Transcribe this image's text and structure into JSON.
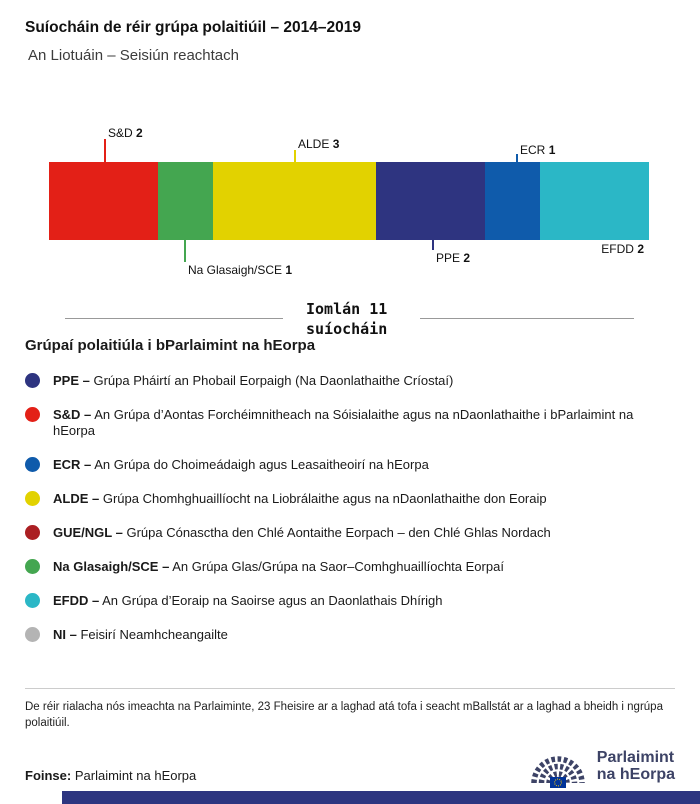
{
  "colors": {
    "text_dark": "#1a1a1a",
    "rule_gray": "#999999",
    "divider_gray": "#cccccc",
    "strip_navy": "#2d3580",
    "logo_navy": "#3d4366",
    "flag_blue": "#003399",
    "star_yellow": "#ffcc00"
  },
  "chart_data": {
    "type": "bar",
    "variant": "single-stacked-horizontal",
    "title": "Suíocháin de réir grúpa polaitiúil – 2014–2019",
    "subtitle": "An Liotuáin – Seisiún reachtach",
    "unit": "suíocháin",
    "total": 11,
    "total_label": "Iomlán 11 suíocháin",
    "segments": [
      {
        "name": "S&D",
        "seats": 2,
        "color": "#e32017",
        "callout": "top"
      },
      {
        "name": "Na Glasaigh/SCE",
        "seats": 1,
        "color": "#44a650",
        "callout": "bottom"
      },
      {
        "name": "ALDE",
        "seats": 3,
        "color": "#e2d200",
        "callout": "top"
      },
      {
        "name": "PPE",
        "seats": 2,
        "color": "#2e3480",
        "callout": "bottom"
      },
      {
        "name": "ECR",
        "seats": 1,
        "color": "#0f5bab",
        "callout": "top"
      },
      {
        "name": "EFDD",
        "seats": 2,
        "color": "#2bb7c6",
        "callout": "bottom"
      }
    ]
  },
  "legend": {
    "title": "Grúpaí polaitiúla i bParlaimint na hEorpa",
    "items": [
      {
        "abbr": "PPE –",
        "desc": "Grúpa Pháirtí an Phobail Eorpaigh (Na Daonlathaithe Críostaí)",
        "color": "#2e3480"
      },
      {
        "abbr": "S&D –",
        "desc": "An Grúpa d’Aontas Forchéimnitheach na Sóisialaithe agus na nDaonlathaithe i bParlaimint na hEorpa",
        "color": "#e32017"
      },
      {
        "abbr": "ECR –",
        "desc": "An Grúpa do Choimeádaigh agus Leasaitheoirí na hEorpa",
        "color": "#0f5bab"
      },
      {
        "abbr": "ALDE –",
        "desc": "Grúpa Chomhghuaillíocht na Liobrálaithe agus na nDaonlathaithe don Eoraip",
        "color": "#e2d200"
      },
      {
        "abbr": "GUE/NGL –",
        "desc": "Grúpa Cónasctha den Chlé Aontaithe Eorpach – den Chlé Ghlas Nordach",
        "color": "#ab1f23"
      },
      {
        "abbr": "Na Glasaigh/SCE –",
        "desc": "An Grúpa Glas/Grúpa na Saor–Comhghuaillíochta Eorpaí",
        "color": "#44a650"
      },
      {
        "abbr": "EFDD –",
        "desc": "An Grúpa d’Eoraip na Saoirse agus an Daonlathais Dhírigh",
        "color": "#2bb7c6"
      },
      {
        "abbr": "NI –",
        "desc": "Feisirí Neamhcheangailte",
        "color": "#b4b4b4"
      }
    ]
  },
  "footer": {
    "note": "De réir rialacha nós imeachta na Parlaiminte, 23 Fheisire ar a laghad atá tofa i seacht mBallstát ar a laghad a bheidh i ngrúpa polaitiúil.",
    "source_label": "Foinse:",
    "source": "Parlaimint na hEorpa",
    "logo_line1": "Parlaimint",
    "logo_line2": "na hEorpa"
  }
}
